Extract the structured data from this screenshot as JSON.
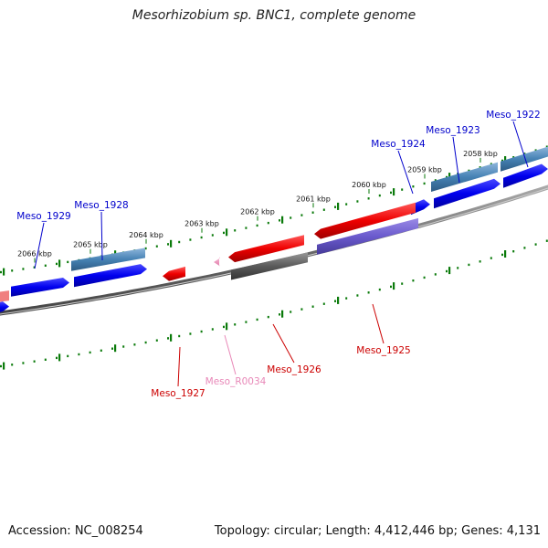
{
  "title": "Mesorhizobium sp. BNC1, complete genome",
  "footer": {
    "accession": "Accession: NC_008254",
    "summary": "Topology: circular; Length: 4,412,446 bp; Genes: 4,131"
  },
  "ticks": [
    {
      "label": "2066 kbp"
    },
    {
      "label": "2065 kbp"
    },
    {
      "label": "2064 kbp"
    },
    {
      "label": "2063 kbp"
    },
    {
      "label": "2062 kbp"
    },
    {
      "label": "2061 kbp"
    },
    {
      "label": "2060 kbp"
    },
    {
      "label": "2059 kbp"
    },
    {
      "label": "2058 kbp"
    }
  ],
  "genes": [
    {
      "label": "Meso_1929",
      "color": "#0000cc"
    },
    {
      "label": "Meso_1928",
      "color": "#0000cc"
    },
    {
      "label": "Meso_1924",
      "color": "#0000cc"
    },
    {
      "label": "Meso_1923",
      "color": "#0000cc"
    },
    {
      "label": "Meso_1922",
      "color": "#0000cc"
    },
    {
      "label": "Meso_1925",
      "color": "#cc0000"
    },
    {
      "label": "Meso_1926",
      "color": "#cc0000"
    },
    {
      "label": "Meso_1927",
      "color": "#cc0000"
    },
    {
      "label": "Meso_R0034",
      "color": "#e888b8"
    }
  ],
  "colors": {
    "forward": "#0000ee",
    "forward_tint": "#4682b4",
    "reverse": "#ee0000",
    "reverse_grey": "#555555",
    "reverse_purple": "#6a5acd",
    "rna": "#f4a0c8",
    "backbone": "#777777",
    "scale": "#0a7a0a"
  }
}
